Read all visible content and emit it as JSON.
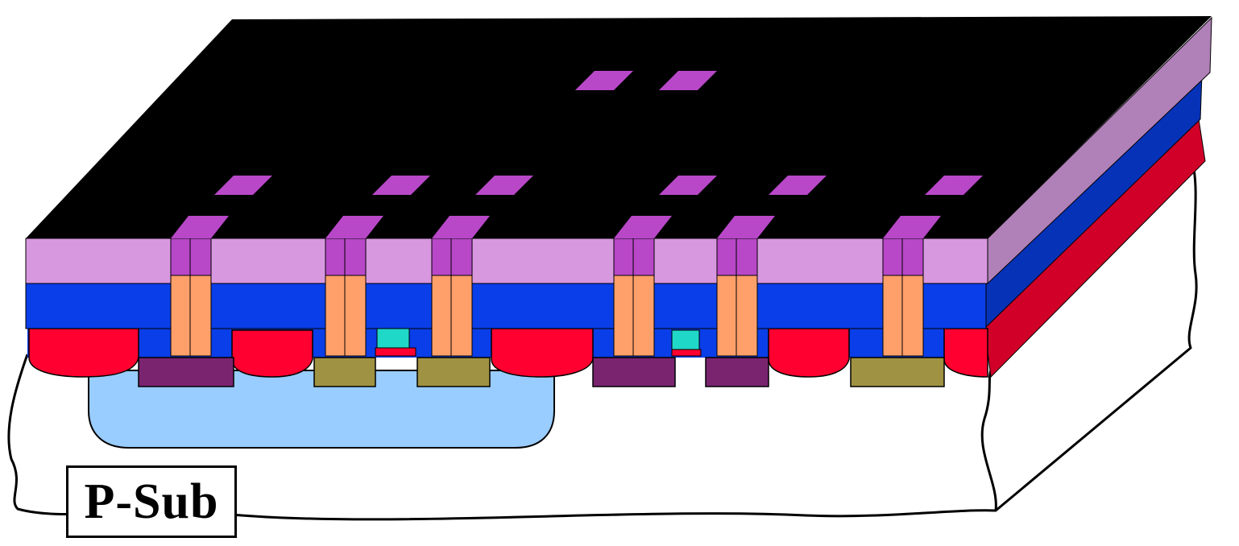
{
  "substrate_label": "P-Sub",
  "colors": {
    "top_surface": "#000000",
    "passivation": "#d898e0",
    "passivation_side": "#b080b8",
    "dielectric": "#0a3ee8",
    "dielectric_side": "#0632b8",
    "field_oxide": "#ff0030",
    "field_oxide_side": "#d00028",
    "contact_pad": "#b848c8",
    "via_plug": "#ff9f6a",
    "n_well": "#99ccff",
    "n_plus": "#7a2470",
    "p_plus": "#9f9242",
    "gate": "#20d8c8",
    "substrate": "#ffffff"
  }
}
